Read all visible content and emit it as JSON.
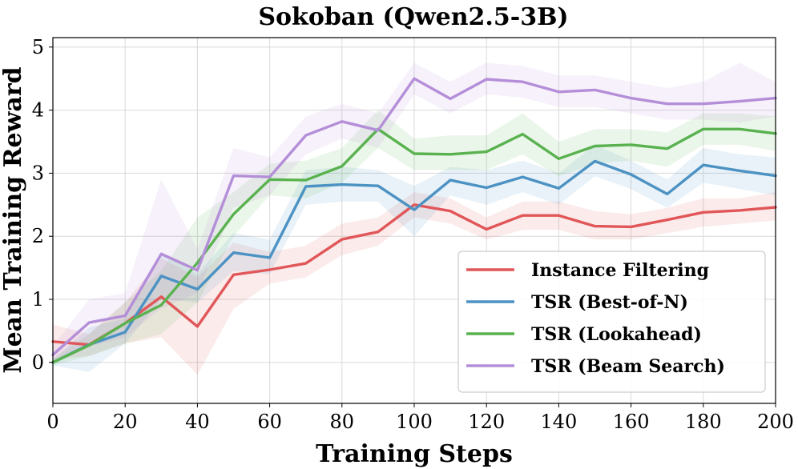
{
  "chart_data": {
    "type": "line",
    "title": "Sokoban (Qwen2.5-3B)",
    "xlabel": "Training Steps",
    "ylabel": "Mean Training Reward",
    "xlim": [
      0,
      200
    ],
    "ylim": [
      -0.65,
      5.15
    ],
    "xticks": [
      0,
      20,
      40,
      60,
      80,
      100,
      120,
      140,
      160,
      180,
      200
    ],
    "yticks": [
      0,
      1,
      2,
      3,
      4,
      5
    ],
    "grid": true,
    "legend_position": "lower-right",
    "x": [
      0,
      10,
      20,
      30,
      40,
      50,
      60,
      70,
      80,
      90,
      100,
      110,
      120,
      130,
      140,
      150,
      160,
      170,
      180,
      190,
      200
    ],
    "series": [
      {
        "name": "Instance Filtering",
        "color": "#e15759",
        "values": [
          0.33,
          0.28,
          0.62,
          1.04,
          0.57,
          1.39,
          1.47,
          1.57,
          1.95,
          2.07,
          2.5,
          2.4,
          2.11,
          2.33,
          2.33,
          2.16,
          2.15,
          2.26,
          2.38,
          2.41,
          2.46
        ],
        "lower": [
          0.05,
          0.1,
          0.3,
          0.4,
          -0.2,
          0.85,
          1.25,
          1.35,
          1.7,
          1.85,
          2.3,
          2.2,
          1.95,
          2.1,
          2.1,
          1.95,
          1.95,
          2.05,
          2.15,
          2.2,
          2.25
        ],
        "upper": [
          0.6,
          0.45,
          0.95,
          1.65,
          1.35,
          1.9,
          1.75,
          1.85,
          2.2,
          2.3,
          2.7,
          2.6,
          2.3,
          2.55,
          2.55,
          2.4,
          2.35,
          2.45,
          2.6,
          2.6,
          2.7
        ]
      },
      {
        "name": "TSR (Best-of-N)",
        "color": "#4c92c3",
        "values": [
          0.0,
          0.28,
          0.48,
          1.37,
          1.16,
          1.74,
          1.66,
          2.79,
          2.82,
          2.8,
          2.42,
          2.89,
          2.77,
          2.94,
          2.76,
          3.19,
          2.98,
          2.67,
          3.13,
          3.04,
          2.96
        ],
        "lower": [
          -0.05,
          -0.15,
          0.3,
          1.0,
          0.95,
          1.45,
          1.4,
          2.5,
          2.55,
          2.55,
          2.0,
          2.65,
          2.5,
          2.7,
          2.5,
          2.95,
          2.75,
          2.45,
          2.85,
          2.75,
          2.65
        ],
        "upper": [
          0.05,
          0.55,
          0.7,
          1.75,
          1.4,
          2.05,
          1.95,
          3.05,
          3.1,
          3.05,
          2.8,
          3.1,
          3.05,
          3.2,
          3.0,
          3.45,
          3.2,
          2.9,
          3.4,
          3.3,
          3.25
        ]
      },
      {
        "name": "TSR (Lookahead)",
        "color": "#59b24f",
        "values": [
          0.0,
          0.27,
          0.62,
          0.91,
          1.58,
          2.35,
          2.9,
          2.89,
          3.11,
          3.7,
          3.31,
          3.3,
          3.34,
          3.62,
          3.23,
          3.43,
          3.45,
          3.39,
          3.7,
          3.7,
          3.63
        ],
        "lower": [
          -0.05,
          0.1,
          0.3,
          0.45,
          0.95,
          2.0,
          2.65,
          2.6,
          2.85,
          3.4,
          3.05,
          3.05,
          3.05,
          3.3,
          2.95,
          3.15,
          3.2,
          3.1,
          3.45,
          3.45,
          3.35
        ],
        "upper": [
          0.05,
          0.45,
          0.95,
          1.45,
          2.3,
          2.7,
          3.15,
          3.2,
          3.4,
          4.0,
          3.55,
          3.6,
          3.6,
          3.95,
          3.5,
          3.7,
          3.7,
          3.65,
          3.95,
          3.95,
          3.9
        ]
      },
      {
        "name": "TSR (Beam Search)",
        "color": "#b48ed8",
        "values": [
          0.12,
          0.63,
          0.74,
          1.72,
          1.46,
          2.96,
          2.94,
          3.6,
          3.82,
          3.68,
          4.5,
          4.18,
          4.49,
          4.45,
          4.29,
          4.32,
          4.19,
          4.1,
          4.1,
          4.14,
          4.19
        ],
        "lower": [
          0.0,
          0.25,
          0.4,
          0.85,
          1.1,
          2.45,
          2.65,
          3.3,
          3.55,
          3.4,
          4.25,
          3.95,
          4.25,
          4.2,
          4.05,
          4.05,
          3.95,
          3.85,
          3.85,
          3.8,
          3.9
        ],
        "upper": [
          0.25,
          1.0,
          1.1,
          2.9,
          1.8,
          3.4,
          3.25,
          3.9,
          4.1,
          3.95,
          4.75,
          4.45,
          4.75,
          4.7,
          4.55,
          4.55,
          4.45,
          4.35,
          4.45,
          4.75,
          4.45
        ]
      }
    ]
  }
}
